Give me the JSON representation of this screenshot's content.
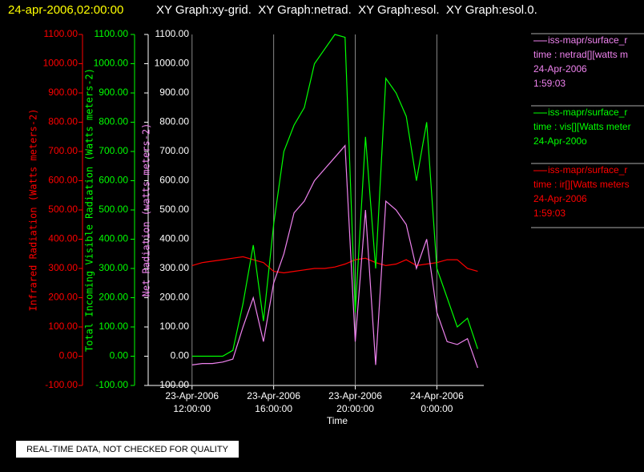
{
  "header": {
    "timestamp": "24-apr-2006,02:00:00",
    "graphs": "XY Graph:xy-grid.  XY Graph:netrad.  XY Graph:esol.  XY Graph:esol.0."
  },
  "notice": "REAL-TIME DATA, NOT CHECKED FOR QUALITY",
  "chart_data": {
    "type": "line",
    "xlabel": "Time",
    "xlim": [
      9.85,
      26.3
    ],
    "xticks": [
      {
        "value": 12,
        "label": "23-Apr-2006 12:00:00"
      },
      {
        "value": 16,
        "label": "23-Apr-2006 16:00:00"
      },
      {
        "value": 20,
        "label": "23-Apr-2006 20:00:00"
      },
      {
        "value": 24,
        "label": "24-Apr-2006 0:00:00"
      }
    ],
    "grid": true,
    "axes": [
      {
        "label": "Infrared Radiation (Watts meters-2)",
        "color": "#ff0000",
        "ylim": [
          -100,
          1100
        ],
        "yticks": [
          {
            "value": -100,
            "label": "-100.00"
          },
          {
            "value": 0,
            "label": "0.00"
          },
          {
            "value": 100,
            "label": "100.00"
          },
          {
            "value": 200,
            "label": "200.00"
          },
          {
            "value": 300,
            "label": "300.00"
          },
          {
            "value": 400,
            "label": "400.00"
          },
          {
            "value": 500,
            "label": "500.00"
          },
          {
            "value": 600,
            "label": "600.00"
          },
          {
            "value": 700,
            "label": "700.00"
          },
          {
            "value": 800,
            "label": "800.00"
          },
          {
            "value": 900,
            "label": "900.00"
          },
          {
            "value": 1000,
            "label": "1000.00"
          },
          {
            "value": 1100,
            "label": "1100.00"
          }
        ]
      },
      {
        "label": "Total Incoming Visible Radiation (Watts meters-2)",
        "color": "#00ff00",
        "ylim": [
          -100,
          1100
        ],
        "yticks": [
          {
            "value": -100,
            "label": "-100.00"
          },
          {
            "value": 0,
            "label": "0.00"
          },
          {
            "value": 100,
            "label": "100.00"
          },
          {
            "value": 200,
            "label": "200.00"
          },
          {
            "value": 300,
            "label": "300.00"
          },
          {
            "value": 400,
            "label": "400.00"
          },
          {
            "value": 500,
            "label": "500.00"
          },
          {
            "value": 600,
            "label": "600.00"
          },
          {
            "value": 700,
            "label": "700.00"
          },
          {
            "value": 800,
            "label": "800.00"
          },
          {
            "value": 900,
            "label": "900.00"
          },
          {
            "value": 1000,
            "label": "1000.00"
          },
          {
            "value": 1100,
            "label": "1100.00"
          }
        ]
      },
      {
        "label": "Net Radiation (watts meters-2)",
        "color": "#ffffff",
        "ylim": [
          -100,
          1100
        ],
        "yticks": [
          {
            "value": -100,
            "label": "-100.00"
          },
          {
            "value": 0,
            "label": "0.00"
          },
          {
            "value": 100,
            "label": "100.00"
          },
          {
            "value": 200,
            "label": "200.00"
          },
          {
            "value": 300,
            "label": "300.00"
          },
          {
            "value": 400,
            "label": "400.00"
          },
          {
            "value": 500,
            "label": "500.00"
          },
          {
            "value": 600,
            "label": "600.00"
          },
          {
            "value": 700,
            "label": "700.00"
          },
          {
            "value": 800,
            "label": "800.00"
          },
          {
            "value": 900,
            "label": "900.00"
          },
          {
            "value": 1000,
            "label": "1000.00"
          },
          {
            "value": 1100,
            "label": "1100.00"
          }
        ]
      }
    ],
    "x": [
      12,
      12.5,
      13,
      13.5,
      14,
      14.5,
      15,
      15.5,
      16,
      16.5,
      17,
      17.5,
      18,
      18.5,
      19,
      19.5,
      20,
      20.5,
      21,
      21.5,
      22,
      22.5,
      23,
      23.5,
      24,
      24.5,
      25,
      25.5,
      26
    ],
    "series": [
      {
        "name": "iss-mapr/surface_r",
        "legend_lines": [
          "time : netrad[][watts m",
          "24-Apr-2006",
          "1:59:03"
        ],
        "color": "#ee82ee",
        "axis": 2,
        "values": [
          -30,
          -25,
          -25,
          -20,
          -10,
          100,
          200,
          50,
          250,
          350,
          490,
          530,
          600,
          640,
          680,
          720,
          50,
          500,
          -30,
          530,
          500,
          450,
          300,
          400,
          150,
          50,
          40,
          60,
          -40
        ]
      },
      {
        "name": "iss-mapr/surface_r",
        "legend_lines": [
          "time : vis[][Watts meter",
          "24-Apr-200o"
        ],
        "color": "#00ff00",
        "axis": 1,
        "values": [
          0,
          0,
          0,
          0,
          20,
          180,
          380,
          120,
          450,
          700,
          790,
          850,
          1000,
          1050,
          1100,
          1090,
          150,
          750,
          300,
          950,
          900,
          820,
          600,
          800,
          300,
          200,
          100,
          130,
          25
        ]
      },
      {
        "name": "iss-mapr/surface_r",
        "legend_lines": [
          "time : ir[][Watts meters",
          "24-Apr-2006",
          "1:59:03"
        ],
        "color": "#ff0000",
        "axis": 0,
        "values": [
          310,
          320,
          325,
          330,
          335,
          340,
          330,
          320,
          290,
          285,
          290,
          295,
          300,
          300,
          305,
          315,
          330,
          335,
          320,
          310,
          315,
          330,
          310,
          315,
          320,
          330,
          330,
          300,
          290
        ]
      }
    ]
  }
}
